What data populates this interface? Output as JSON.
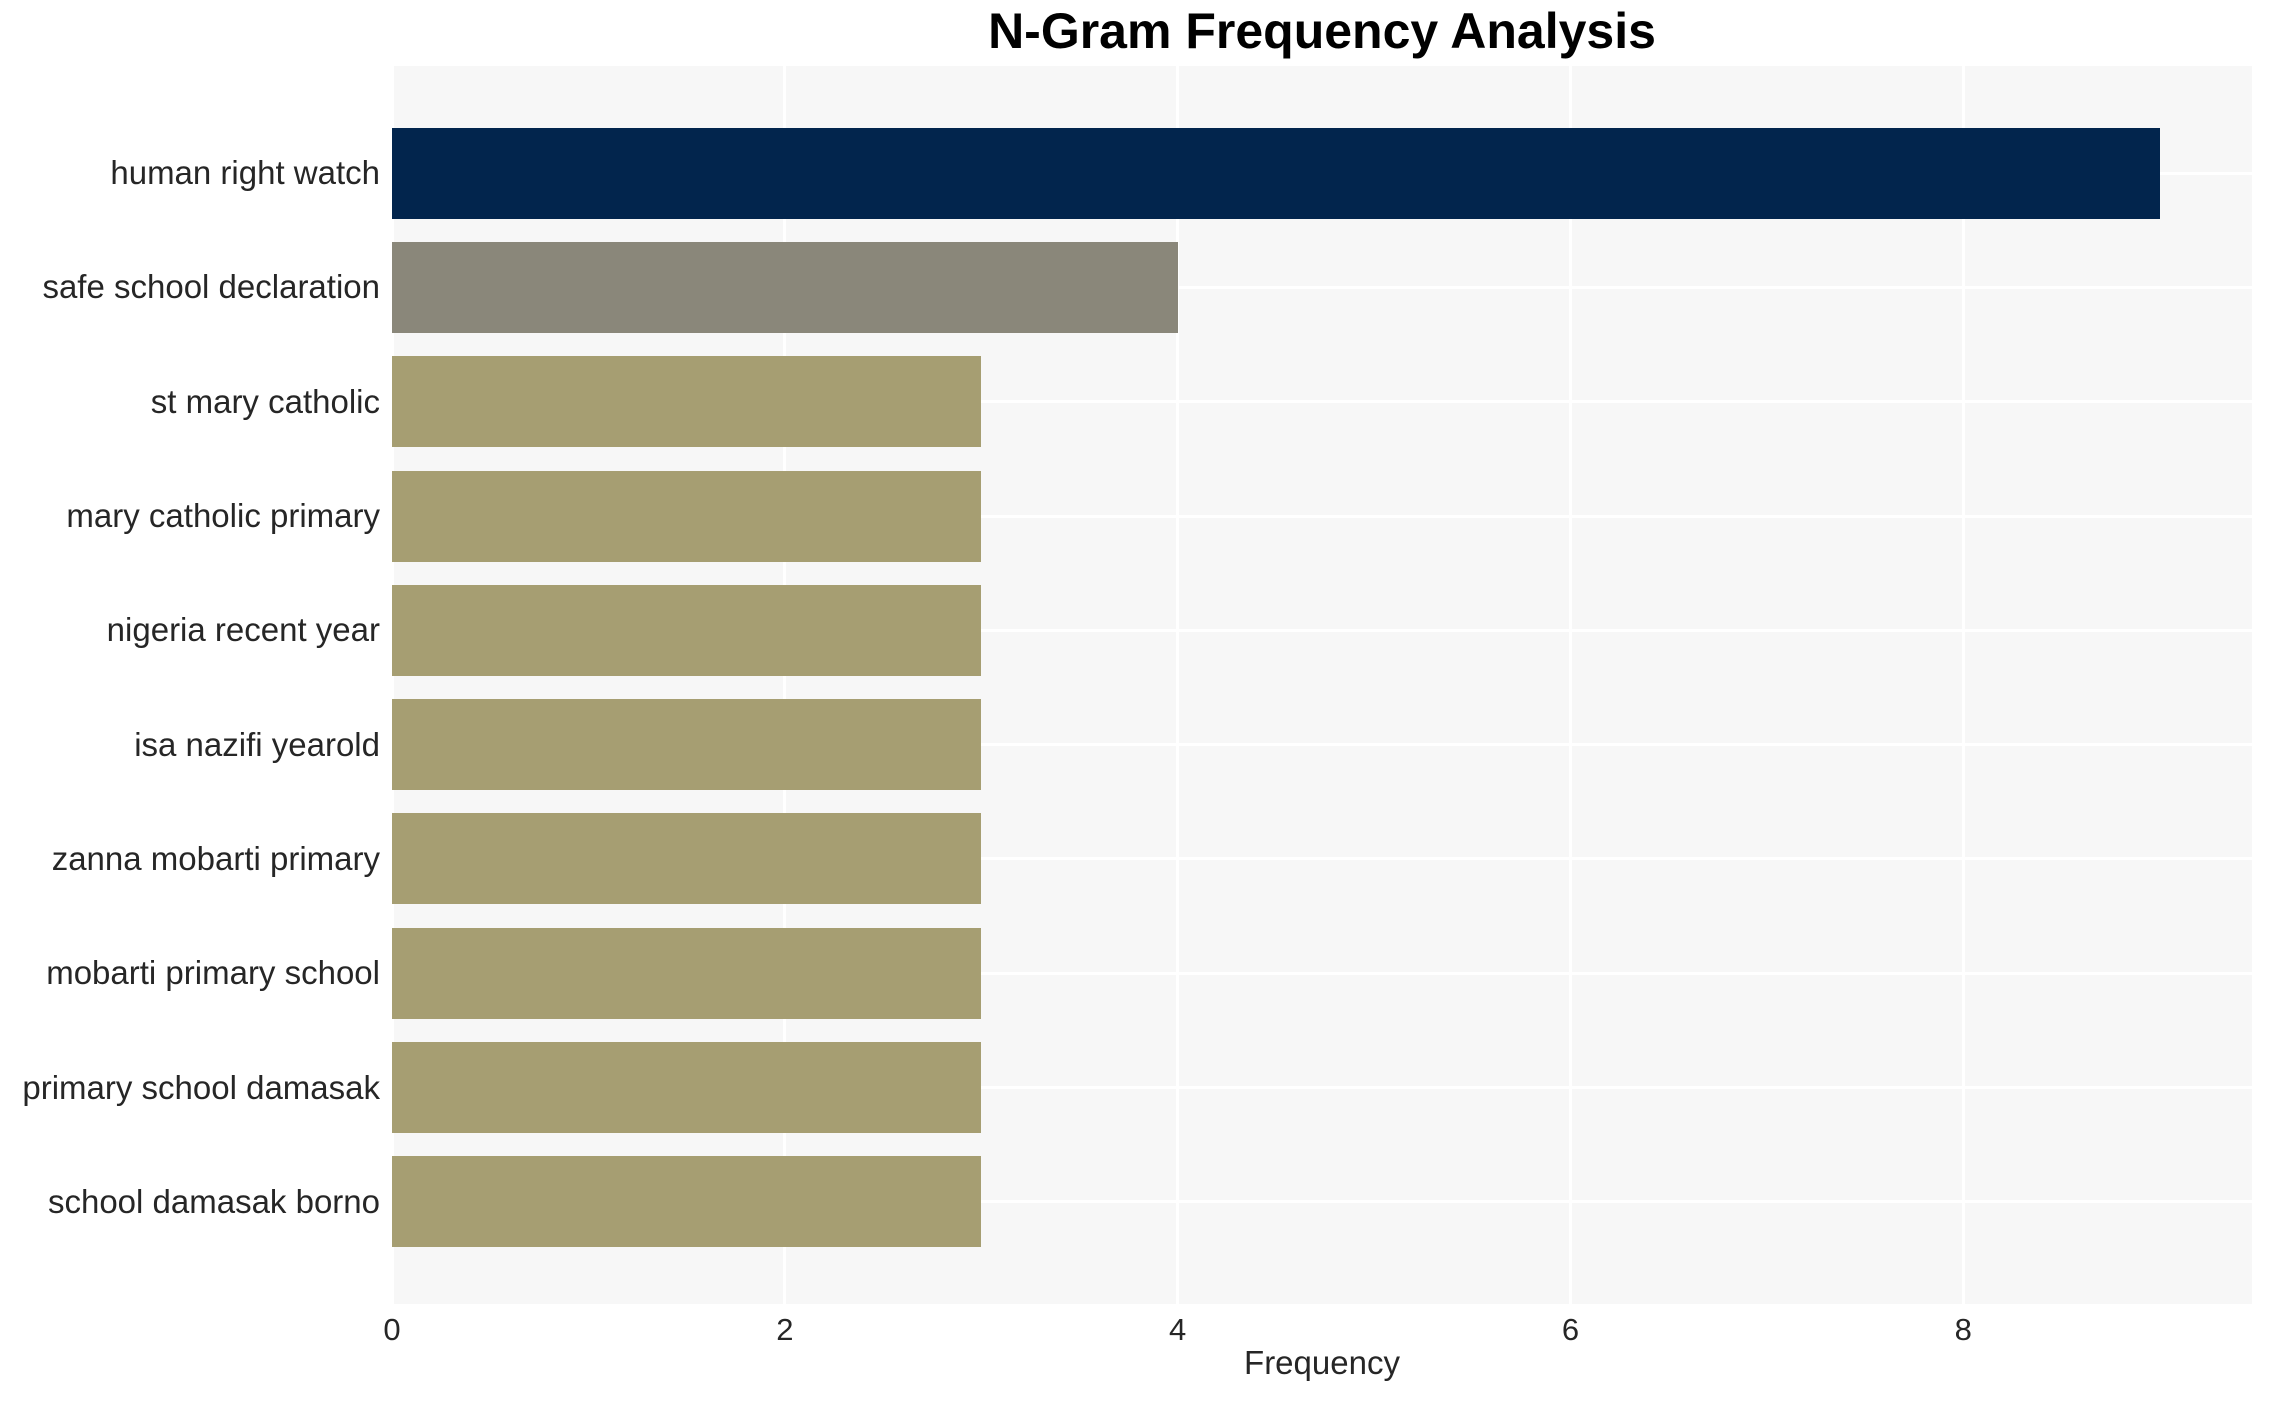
{
  "chart_data": {
    "type": "bar",
    "orientation": "horizontal",
    "title": "N-Gram Frequency Analysis",
    "xlabel": "Frequency",
    "ylabel": "",
    "categories": [
      "human right watch",
      "safe school declaration",
      "st mary catholic",
      "mary catholic primary",
      "nigeria recent year",
      "isa nazifi yearold",
      "zanna mobarti primary",
      "mobarti primary school",
      "primary school damasak",
      "school damasak borno"
    ],
    "values": [
      9,
      4,
      3,
      3,
      3,
      3,
      3,
      3,
      3,
      3
    ],
    "xticks": [
      0,
      2,
      4,
      6,
      8
    ],
    "xlim": [
      0,
      9.47
    ],
    "grid": true,
    "legend": "none",
    "bar_colors": [
      "#02254D",
      "#8A877A",
      "#A69E72",
      "#A69E72",
      "#A69E72",
      "#A69E72",
      "#A69E72",
      "#A69E72",
      "#A69E72",
      "#A69E72"
    ],
    "colors": {
      "plot_background": "#F7F7F7",
      "grid_color": "#FFFFFF",
      "text_color": "#262626",
      "title_color": "#000000"
    }
  }
}
